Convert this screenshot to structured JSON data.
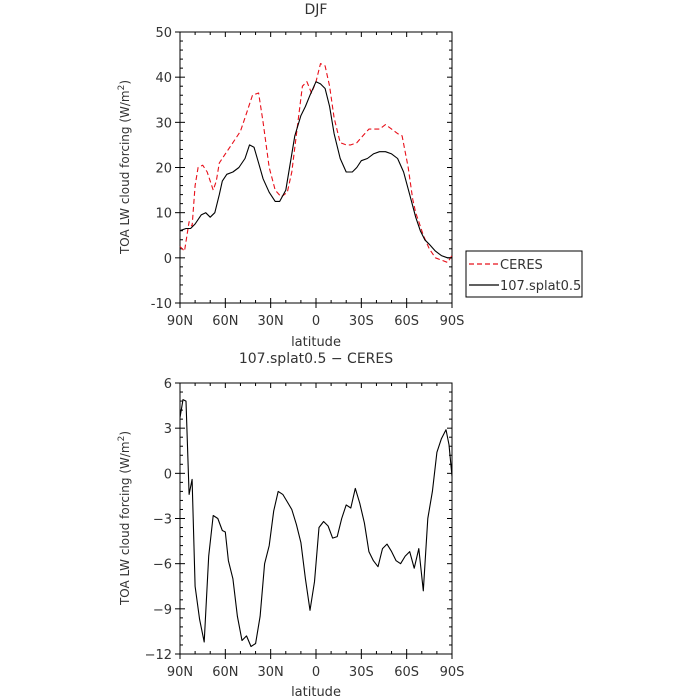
{
  "chart_data": [
    {
      "type": "line",
      "title": "DJF",
      "xlabel": "latitude",
      "ylabel": "TOA LW cloud forcing (W/m²)",
      "ylabel_main": "TOA LW cloud forcing (W/m",
      "ylabel_sup": "2",
      "ylabel_close": ")",
      "xlim": [
        90,
        -90
      ],
      "ylim": [
        -10,
        50
      ],
      "xticks": [
        90,
        60,
        30,
        0,
        -30,
        -60,
        -90
      ],
      "xtick_labels": [
        "90N",
        "60N",
        "30N",
        "0",
        "30S",
        "60S",
        "90S"
      ],
      "yticks": [
        -10,
        0,
        10,
        20,
        30,
        40,
        50
      ],
      "ytick_labels": [
        "-10",
        "0",
        "10",
        "20",
        "30",
        "40",
        "50"
      ],
      "legend": {
        "position": "right",
        "entries": [
          "CERES",
          "107.splat0.5"
        ]
      },
      "series": [
        {
          "name": "CERES",
          "color": "#e8101a",
          "dash": "dashed",
          "x": [
            90,
            87,
            84,
            82,
            80,
            78,
            75,
            72,
            68,
            66,
            64,
            60,
            56,
            50,
            46,
            42,
            38,
            35,
            31,
            27,
            23,
            19,
            16,
            12,
            9,
            6,
            3,
            0,
            -3,
            -6,
            -9,
            -12,
            -16,
            -20,
            -23,
            -27,
            -31,
            -35,
            -39,
            -42,
            -46,
            -50,
            -54,
            -57,
            -61,
            -64,
            -66,
            -68,
            -71,
            -75,
            -79,
            -83,
            -87,
            -90
          ],
          "y": [
            2.5,
            1.5,
            8,
            7,
            16,
            20,
            20.5,
            19,
            15,
            17,
            21,
            23,
            25,
            28,
            32,
            36,
            36.5,
            30,
            20,
            15,
            13.5,
            14.5,
            19,
            30,
            38,
            39,
            36.5,
            39,
            43,
            42.5,
            38,
            31,
            25.5,
            25,
            25,
            25.5,
            27,
            28.5,
            28.5,
            28.5,
            29.5,
            28.5,
            27.5,
            27,
            20,
            13,
            10,
            8,
            5,
            2,
            0,
            -0.5,
            -1,
            0.5
          ]
        },
        {
          "name": "107.splat0.5",
          "color": "#000000",
          "dash": "solid",
          "x": [
            90,
            86,
            83,
            80,
            76,
            73,
            70,
            67,
            64,
            62,
            59,
            55,
            51,
            47,
            44,
            41,
            38,
            35,
            31,
            27,
            24,
            20,
            17,
            14,
            10,
            7,
            4,
            0,
            -3,
            -6,
            -9,
            -12,
            -16,
            -20,
            -24,
            -27,
            -30,
            -34,
            -38,
            -42,
            -46,
            -50,
            -54,
            -58,
            -62,
            -66,
            -69,
            -72,
            -75,
            -79,
            -83,
            -87,
            -90
          ],
          "y": [
            6,
            6.5,
            6.5,
            7.5,
            9.5,
            10,
            9,
            10,
            14,
            17,
            18.5,
            19,
            20,
            22,
            25,
            24.5,
            21,
            17.5,
            14.5,
            12.5,
            12.5,
            15,
            21,
            27,
            31.5,
            33.5,
            36,
            39,
            38.5,
            37.5,
            33.5,
            27.5,
            22,
            19,
            19,
            20,
            21.5,
            22,
            23,
            23.5,
            23.5,
            23,
            22,
            19,
            14,
            9,
            6,
            4,
            3,
            1.5,
            0.5,
            0,
            0
          ]
        }
      ]
    },
    {
      "type": "line",
      "title": "107.splat0.5 − CERES",
      "xlabel": "latitude",
      "ylabel": "TOA LW cloud forcing (W/m²)",
      "ylabel_main": "TOA LW cloud forcing (W/m",
      "ylabel_sup": "2",
      "ylabel_close": ")",
      "xlim": [
        90,
        -90
      ],
      "ylim": [
        -12,
        6
      ],
      "xticks": [
        90,
        60,
        30,
        0,
        -30,
        -60,
        -90
      ],
      "xtick_labels": [
        "90N",
        "60N",
        "30N",
        "0",
        "30S",
        "60S",
        "90S"
      ],
      "yticks": [
        -12,
        -9,
        -6,
        -3,
        0,
        3,
        6
      ],
      "ytick_labels": [
        "−12",
        "−9",
        "−6",
        "−3",
        "0",
        "3",
        "6"
      ],
      "series": [
        {
          "name": "107.splat0.5",
          "color": "#000000",
          "dash": "solid",
          "x": [
            90,
            88,
            86,
            84,
            82,
            80,
            77,
            74,
            71,
            68,
            65,
            62,
            60,
            58,
            55,
            52,
            49,
            46,
            43,
            40,
            37,
            34,
            31,
            28,
            25,
            22,
            19,
            16,
            13,
            10,
            7,
            4,
            1,
            -2,
            -5,
            -8,
            -11,
            -14,
            -17,
            -20,
            -23,
            -26,
            -29,
            -32,
            -35,
            -38,
            -41,
            -44,
            -47,
            -50,
            -53,
            -56,
            -59,
            -62,
            -65,
            -68,
            -71,
            -74,
            -77,
            -80,
            -83,
            -86,
            -88,
            -90
          ],
          "y": [
            3.7,
            4.9,
            4.8,
            -1.4,
            -0.4,
            -7.5,
            -9.7,
            -11.2,
            -5.5,
            -2.8,
            -3,
            -3.8,
            -3.9,
            -5.8,
            -7,
            -9.5,
            -11.1,
            -10.8,
            -11.5,
            -11.3,
            -9.5,
            -6,
            -4.8,
            -2.5,
            -1.2,
            -1.4,
            -1.9,
            -2.4,
            -3.4,
            -4.6,
            -7,
            -9.1,
            -7.2,
            -3.6,
            -3.2,
            -3.5,
            -4.3,
            -4.2,
            -3,
            -2.1,
            -2.3,
            -1,
            -2,
            -3.3,
            -5.2,
            -5.8,
            -6.2,
            -5,
            -4.7,
            -5.2,
            -5.8,
            -6,
            -5.5,
            -5.2,
            -6.3,
            -5,
            -7.8,
            -3,
            -1.2,
            1.4,
            2.3,
            2.9,
            1.9,
            -0.2
          ]
        }
      ]
    }
  ]
}
